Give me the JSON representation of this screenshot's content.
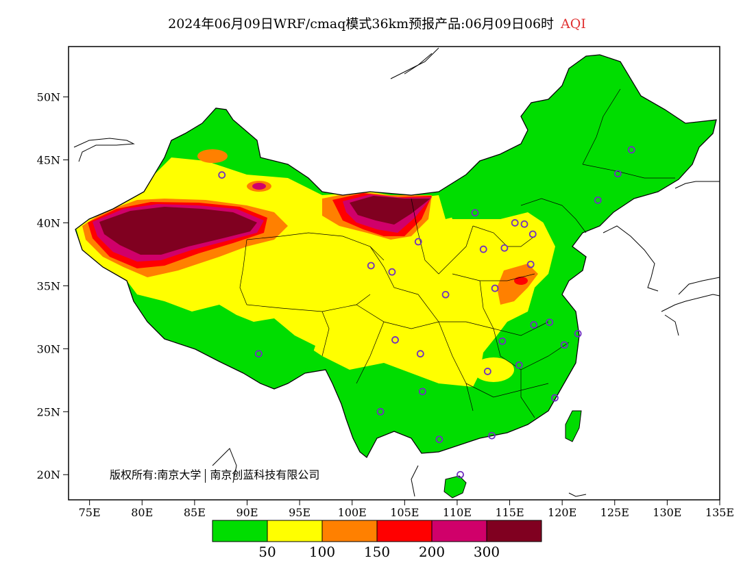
{
  "title": {
    "main": "2024年06月09日WRF/cmaq模式36km预报产品:06月09日06时",
    "variable": "AQI",
    "variable_color": "#e03030"
  },
  "y_axis": {
    "ticks": [
      {
        "label": "50N",
        "lat": 50
      },
      {
        "label": "45N",
        "lat": 45
      },
      {
        "label": "40N",
        "lat": 40
      },
      {
        "label": "35N",
        "lat": 35
      },
      {
        "label": "30N",
        "lat": 30
      },
      {
        "label": "25N",
        "lat": 25
      },
      {
        "label": "20N",
        "lat": 20
      }
    ]
  },
  "x_axis": {
    "ticks": [
      {
        "label": "75E",
        "lon": 75
      },
      {
        "label": "80E",
        "lon": 80
      },
      {
        "label": "85E",
        "lon": 85
      },
      {
        "label": "90E",
        "lon": 90
      },
      {
        "label": "95E",
        "lon": 95
      },
      {
        "label": "100E",
        "lon": 100
      },
      {
        "label": "105E",
        "lon": 105
      },
      {
        "label": "110E",
        "lon": 110
      },
      {
        "label": "115E",
        "lon": 115
      },
      {
        "label": "120E",
        "lon": 120
      },
      {
        "label": "125E",
        "lon": 125
      },
      {
        "label": "130E",
        "lon": 130
      },
      {
        "label": "135E",
        "lon": 135
      }
    ]
  },
  "extent": {
    "lon": [
      73,
      135
    ],
    "lat": [
      18,
      54
    ]
  },
  "legend": {
    "colors": [
      "#00dd00",
      "#ffff00",
      "#ff8000",
      "#ff0000",
      "#d0006a",
      "#800020"
    ],
    "labels": [
      "50",
      "100",
      "150",
      "200",
      "300"
    ]
  },
  "copyright": {
    "prefix": "版权所有:南京大学",
    "org": "南京创蓝科技有限公司"
  },
  "stations": [
    [
      87.6,
      43.8
    ],
    [
      91.1,
      29.6
    ],
    [
      101.8,
      36.6
    ],
    [
      103.8,
      36.1
    ],
    [
      106.3,
      38.5
    ],
    [
      104.1,
      30.7
    ],
    [
      106.5,
      29.6
    ],
    [
      106.7,
      26.6
    ],
    [
      102.7,
      25.0
    ],
    [
      108.3,
      22.8
    ],
    [
      110.3,
      20.0
    ],
    [
      113.3,
      23.1
    ],
    [
      108.9,
      34.3
    ],
    [
      111.7,
      40.8
    ],
    [
      112.5,
      37.9
    ],
    [
      114.5,
      38.0
    ],
    [
      116.4,
      39.9
    ],
    [
      117.2,
      39.1
    ],
    [
      117.0,
      36.7
    ],
    [
      113.6,
      34.8
    ],
    [
      114.3,
      30.6
    ],
    [
      112.9,
      28.2
    ],
    [
      115.9,
      28.7
    ],
    [
      117.3,
      31.9
    ],
    [
      118.8,
      32.1
    ],
    [
      120.2,
      30.3
    ],
    [
      121.5,
      31.2
    ],
    [
      119.3,
      26.1
    ],
    [
      123.4,
      41.8
    ],
    [
      125.3,
      43.9
    ],
    [
      126.6,
      45.8
    ],
    [
      115.5,
      40.0
    ]
  ]
}
